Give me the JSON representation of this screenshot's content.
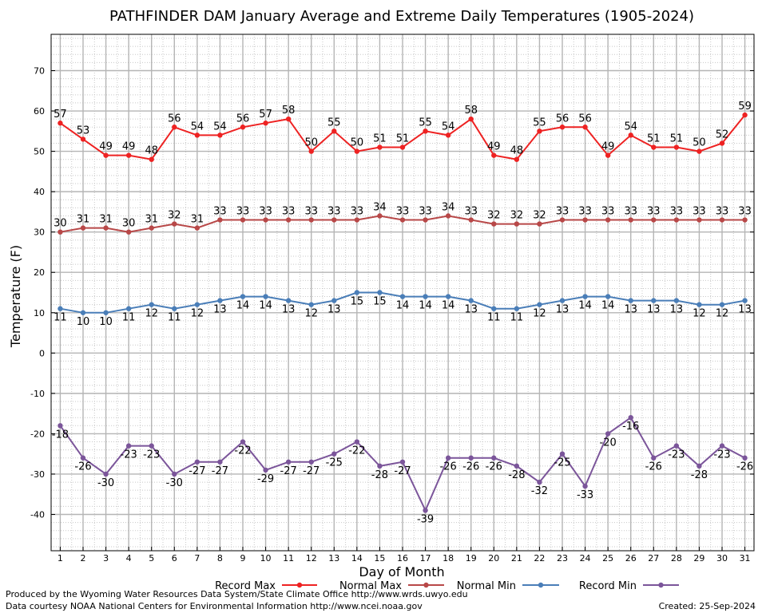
{
  "chart_data": {
    "type": "line",
    "title": "PATHFINDER DAM January Average and Extreme Daily Temperatures (1905-2024)",
    "xlabel": "Day of Month",
    "ylabel": "Temperature (F)",
    "x": [
      1,
      2,
      3,
      4,
      5,
      6,
      7,
      8,
      9,
      10,
      11,
      12,
      13,
      14,
      15,
      16,
      17,
      18,
      19,
      20,
      21,
      22,
      23,
      24,
      25,
      26,
      27,
      28,
      29,
      30,
      31
    ],
    "xlim": [
      0.6,
      31.4
    ],
    "ylim": [
      -49,
      79
    ],
    "yticks": [
      -40,
      -30,
      -20,
      -10,
      0,
      10,
      20,
      30,
      40,
      50,
      60,
      70
    ],
    "grid": true,
    "legend_position": "bottom",
    "series": [
      {
        "name": "Record Max",
        "color": "#ee2222",
        "label_position": "above",
        "values": [
          57,
          53,
          49,
          49,
          48,
          56,
          54,
          54,
          56,
          57,
          58,
          50,
          55,
          50,
          51,
          51,
          55,
          54,
          58,
          49,
          48,
          55,
          56,
          56,
          49,
          54,
          51,
          51,
          50,
          52,
          59
        ]
      },
      {
        "name": "Normal Max",
        "color": "#b84848",
        "label_position": "above",
        "values": [
          30,
          31,
          31,
          30,
          31,
          32,
          31,
          33,
          33,
          33,
          33,
          33,
          33,
          33,
          34,
          33,
          33,
          34,
          33,
          32,
          32,
          32,
          33,
          33,
          33,
          33,
          33,
          33,
          33,
          33,
          33
        ]
      },
      {
        "name": "Normal Min",
        "color": "#4a7eb8",
        "label_position": "below",
        "values": [
          11,
          10,
          10,
          11,
          12,
          11,
          12,
          13,
          14,
          14,
          13,
          12,
          13,
          15,
          15,
          14,
          14,
          14,
          13,
          11,
          11,
          12,
          13,
          14,
          14,
          13,
          13,
          13,
          12,
          12,
          13
        ]
      },
      {
        "name": "Record Min",
        "color": "#7b559a",
        "label_position": "below",
        "values": [
          -18,
          -26,
          -30,
          -23,
          -23,
          -30,
          -27,
          -27,
          -22,
          -29,
          -27,
          -27,
          -25,
          -22,
          -28,
          -27,
          -39,
          -26,
          -26,
          -26,
          -28,
          -32,
          -25,
          -33,
          -20,
          -16,
          -26,
          -23,
          -28,
          -23,
          -26
        ]
      }
    ]
  },
  "footer": {
    "produced_by": "Produced by the Wyoming Water Resources Data System/State Climate Office http://www.wrds.uwyo.edu",
    "data_courtesy": "Data courtesy NOAA National Centers for Environmental Information http://www.ncei.noaa.gov",
    "created": "Created: 25-Sep-2024"
  }
}
